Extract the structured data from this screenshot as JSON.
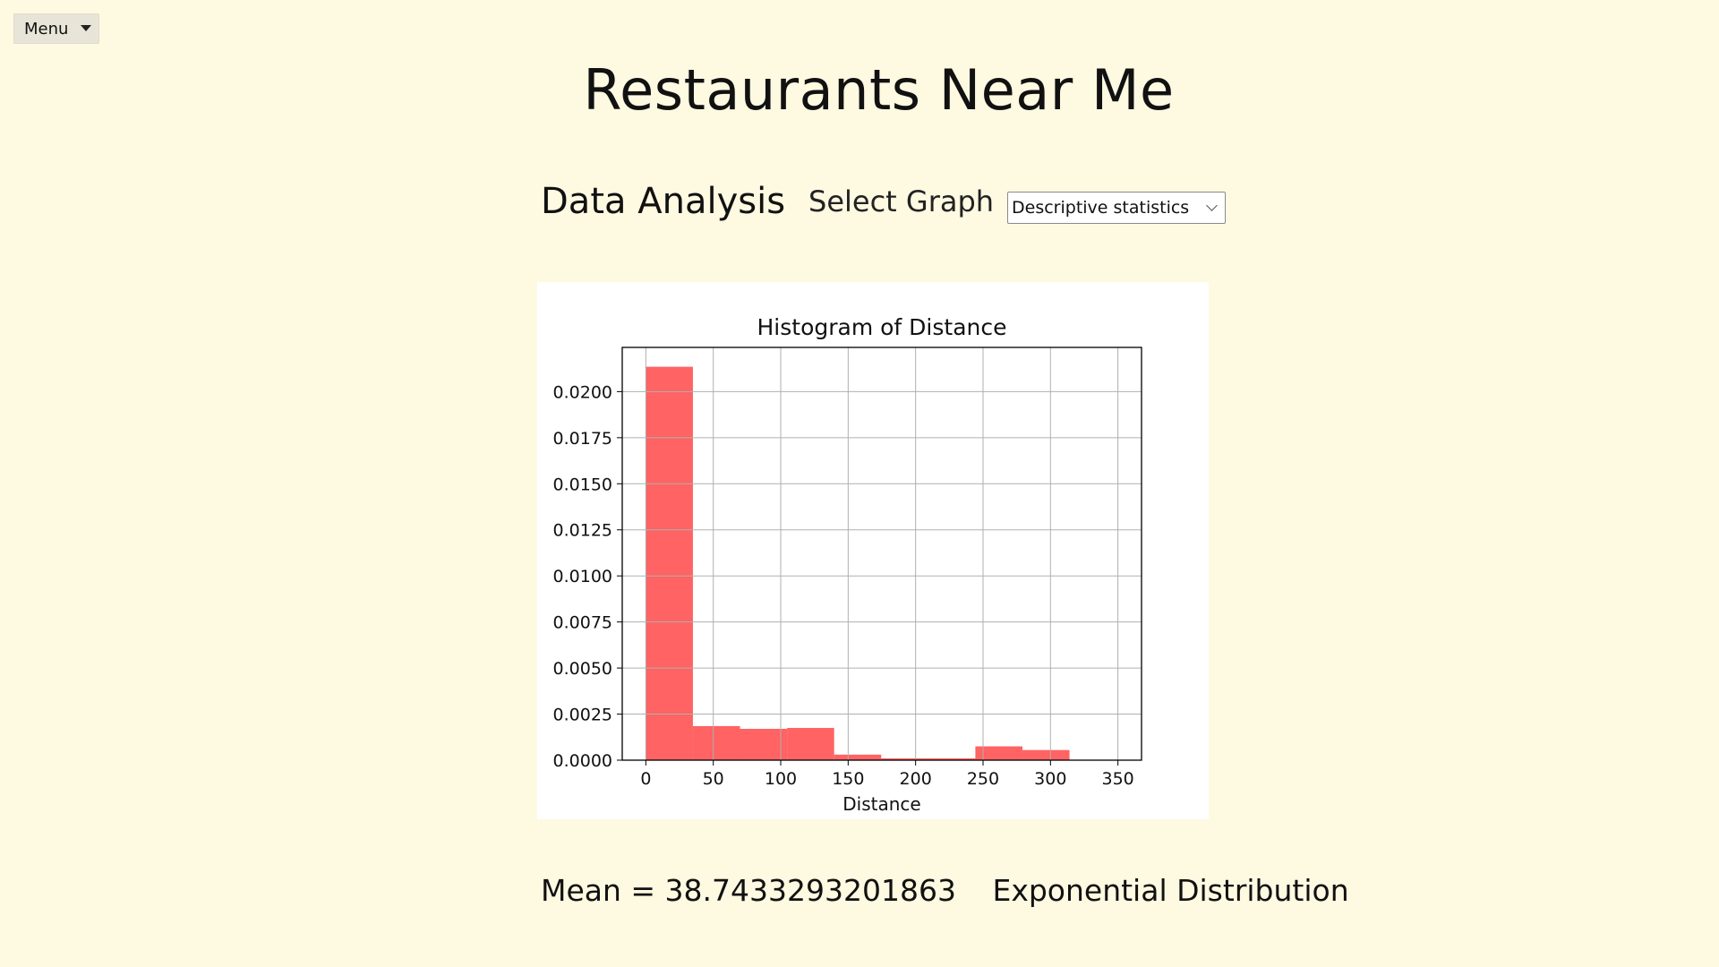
{
  "menu": {
    "label": "Menu",
    "caret_icon": "caret-down-icon"
  },
  "header": {
    "title": "Restaurants Near Me"
  },
  "controls": {
    "section_label": "Data Analysis",
    "select_label": "Select Graph",
    "select_value": "Descriptive statistics",
    "select_icon": "chevron-down-icon"
  },
  "chart_data": {
    "type": "bar",
    "title": "Histogram of Distance",
    "xlabel": "Distance",
    "ylabel": "",
    "xlim": [
      -17.5,
      367.5
    ],
    "ylim": [
      0,
      0.0224
    ],
    "xticks": [
      0,
      50,
      100,
      150,
      200,
      250,
      300,
      350
    ],
    "yticks": [
      0,
      0.0025,
      0.005,
      0.0075,
      0.01,
      0.0125,
      0.015,
      0.0175,
      0.02
    ],
    "ytick_labels": [
      "0.0000",
      "0.0025",
      "0.0050",
      "0.0075",
      "0.0100",
      "0.0125",
      "0.0150",
      "0.0175",
      "0.0200"
    ],
    "bin_edges": [
      0,
      34.9,
      69.8,
      104.7,
      139.6,
      174.5,
      209.4,
      244.3,
      279.2,
      314.1
    ],
    "values": [
      0.02135,
      0.00185,
      0.0017,
      0.00175,
      0.0003,
      0.0001,
      0.0001,
      0.00075,
      0.00055
    ],
    "bar_color": "#ff6363",
    "grid": true
  },
  "stats": {
    "mean_text": "Mean = 38.7433293201863",
    "distribution_text": "Exponential Distribution"
  }
}
